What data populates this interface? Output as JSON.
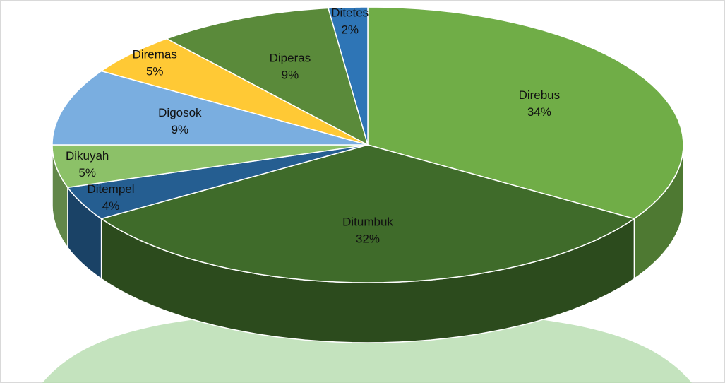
{
  "chart_data": {
    "type": "pie3d",
    "categories": [
      "Direbus",
      "Ditumbuk",
      "Ditempel",
      "Dikuyah",
      "Digosok",
      "Diremas",
      "Diperas",
      "Ditetes"
    ],
    "values": [
      34,
      32,
      4,
      5,
      9,
      5,
      9,
      2
    ],
    "value_labels": [
      "34%",
      "32%",
      "4%",
      "5%",
      "9%",
      "5%",
      "9%",
      "2%"
    ],
    "colors": [
      "#70ad47",
      "#3f6b2a",
      "#255e91",
      "#8cc168",
      "#7aaee0",
      "#ffc935",
      "#5a8a3a",
      "#2e75b6"
    ]
  }
}
